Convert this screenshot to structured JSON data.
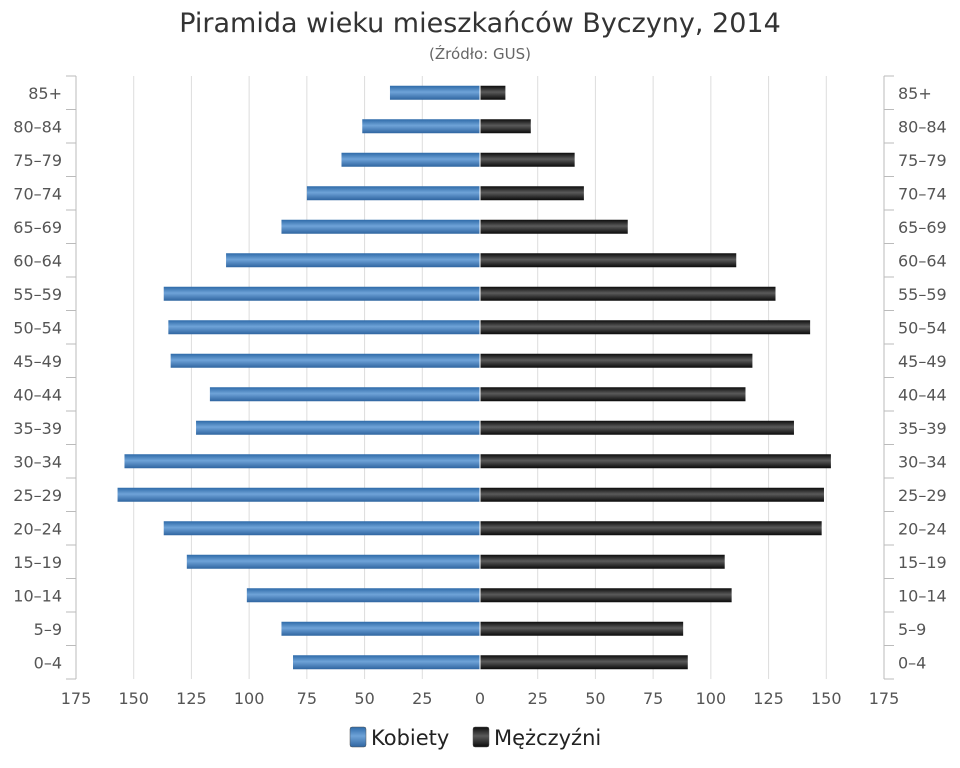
{
  "chart_data": {
    "type": "bar",
    "orientation": "horizontal-pyramid",
    "title": "Piramida wieku mieszkańców Byczyny, 2014",
    "subtitle": "(Źródło: GUS)",
    "categories": [
      "85+",
      "80–84",
      "75–79",
      "70–74",
      "65–69",
      "60–64",
      "55–59",
      "50–54",
      "45–49",
      "40–44",
      "35–39",
      "30–34",
      "25–29",
      "20–24",
      "15–19",
      "10–14",
      "5–9",
      "0–4"
    ],
    "series": [
      {
        "name": "Kobiety",
        "side": "left",
        "color": "#3a78b5",
        "values": [
          39,
          51,
          60,
          75,
          86,
          110,
          137,
          135,
          134,
          117,
          123,
          154,
          157,
          137,
          127,
          101,
          86,
          81
        ]
      },
      {
        "name": "Mężczyźni",
        "side": "right",
        "color": "#1a1a1a",
        "values": [
          11,
          22,
          41,
          45,
          64,
          111,
          128,
          143,
          118,
          115,
          136,
          152,
          149,
          148,
          106,
          109,
          88,
          90
        ]
      }
    ],
    "x_ticks": [
      "175",
      "150",
      "125",
      "100",
      "75",
      "50",
      "25",
      "0",
      "25",
      "50",
      "75",
      "100",
      "125",
      "150",
      "175"
    ],
    "xlim": [
      -175,
      175
    ],
    "grid": true,
    "legend_position": "bottom-center"
  }
}
